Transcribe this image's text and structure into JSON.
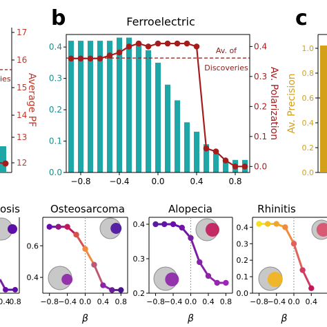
{
  "panel_letters": {
    "b": "b",
    "c": "c"
  },
  "colors": {
    "bar": "#1fa6a6",
    "line": "#a61c1c",
    "dashed": "#8b1a1a",
    "av_pf": "#c0392b",
    "av_precision": "#d4a017",
    "circle_gray": "#c8c8c8"
  },
  "left_partial": {
    "ylabel": "Average PF",
    "yticks": [
      "17",
      "16",
      "15",
      "14",
      "13",
      "12"
    ],
    "legend_fragment": "ies",
    "bottom_title_fragment": "osis"
  },
  "right_partial": {
    "ylabel": "Av. Precision",
    "yticks": [
      "1.0",
      "0.8",
      "0.6",
      "0.4",
      "0.2",
      "0.0"
    ]
  },
  "chart_data": [
    {
      "type": "bar",
      "title": "Ferroelectric",
      "xlabel": "",
      "ylabel_left": "",
      "ylabel_right": "Av. Polarization",
      "xlim": [
        -0.95,
        0.95
      ],
      "ylim_left": [
        0,
        0.44
      ],
      "ylim_right": [
        -0.02,
        0.44
      ],
      "xticks": [
        -0.8,
        -0.4,
        0.0,
        0.4,
        0.8
      ],
      "xtick_labels": [
        "−0.8",
        "−0.4",
        "0.0",
        "0.4",
        "0.8"
      ],
      "yticks_left": [
        "0.0",
        "0.1",
        "0.2",
        "0.3",
        "0.4"
      ],
      "yticks_right": [
        "0.0",
        "0.1",
        "0.2",
        "0.3",
        "0.4"
      ],
      "bars": {
        "x": [
          -0.9,
          -0.8,
          -0.7,
          -0.6,
          -0.5,
          -0.4,
          -0.3,
          -0.2,
          -0.1,
          0.0,
          0.1,
          0.2,
          0.3,
          0.4,
          0.5,
          0.6,
          0.7,
          0.8,
          0.9
        ],
        "values": [
          0.42,
          0.42,
          0.42,
          0.42,
          0.42,
          0.43,
          0.43,
          0.41,
          0.39,
          0.35,
          0.28,
          0.23,
          0.16,
          0.13,
          0.09,
          0.06,
          0.04,
          0.04,
          0.04
        ]
      },
      "line": {
        "x": [
          -0.9,
          -0.8,
          -0.7,
          -0.6,
          -0.5,
          -0.4,
          -0.3,
          -0.2,
          -0.1,
          0.0,
          0.1,
          0.2,
          0.3,
          0.4,
          0.5,
          0.6,
          0.7,
          0.8,
          0.9
        ],
        "values": [
          0.36,
          0.36,
          0.36,
          0.36,
          0.37,
          0.38,
          0.4,
          0.41,
          0.4,
          0.41,
          0.41,
          0.41,
          0.41,
          0.4,
          0.06,
          0.05,
          0.02,
          0.0,
          0.0
        ]
      },
      "reference_line": {
        "value": 0.365,
        "label_lines": [
          "Av. of",
          "Discoveries"
        ]
      }
    },
    {
      "type": "line",
      "title": "Osteosarcoma",
      "xlabel": "β",
      "xlim": [
        -0.95,
        0.95
      ],
      "ylim": [
        0.3,
        0.78
      ],
      "xtick_labels": [
        "−0.8",
        "−0.4",
        "0.0",
        "0.4",
        "0.8"
      ],
      "ytick_values": [
        0.4,
        0.6
      ],
      "ytick_labels": [
        "0.4",
        "0.6"
      ],
      "x": [
        -0.8,
        -0.6,
        -0.4,
        -0.2,
        0.0,
        0.2,
        0.4,
        0.6,
        0.8
      ],
      "values": [
        0.72,
        0.72,
        0.72,
        0.67,
        0.58,
        0.48,
        0.35,
        0.32,
        0.32
      ]
    },
    {
      "type": "line",
      "title": "Alopecia",
      "xlabel": "β",
      "xlim": [
        -0.95,
        0.95
      ],
      "ylim": [
        0.2,
        0.42
      ],
      "xtick_labels": [
        "−0.8",
        "−0.4",
        "0.0",
        "0.4",
        "0.8"
      ],
      "ytick_values": [
        0.2,
        0.3,
        0.4
      ],
      "ytick_labels": [
        "0.2",
        "0.3",
        "0.4"
      ],
      "x": [
        -0.8,
        -0.6,
        -0.4,
        -0.2,
        0.0,
        0.2,
        0.4,
        0.6,
        0.8
      ],
      "values": [
        0.4,
        0.4,
        0.4,
        0.39,
        0.36,
        0.29,
        0.25,
        0.23,
        0.23
      ]
    },
    {
      "type": "line",
      "title": "Rhinitis",
      "xlabel": "β",
      "xlim": [
        -0.95,
        0.95
      ],
      "ylim": [
        0.0,
        0.46
      ],
      "xtick_labels": [
        "−0.8",
        "−0.4",
        "0.0",
        "0.4"
      ],
      "ytick_values": [
        0.0,
        0.1,
        0.2,
        0.3,
        0.4
      ],
      "ytick_labels": [
        "0.0",
        "0.1",
        "0.2",
        "0.3",
        "0.4"
      ],
      "x": [
        -0.8,
        -0.6,
        -0.4,
        -0.2,
        0.0,
        0.2,
        0.4
      ],
      "values": [
        0.42,
        0.42,
        0.42,
        0.4,
        0.3,
        0.14,
        0.03
      ]
    }
  ]
}
